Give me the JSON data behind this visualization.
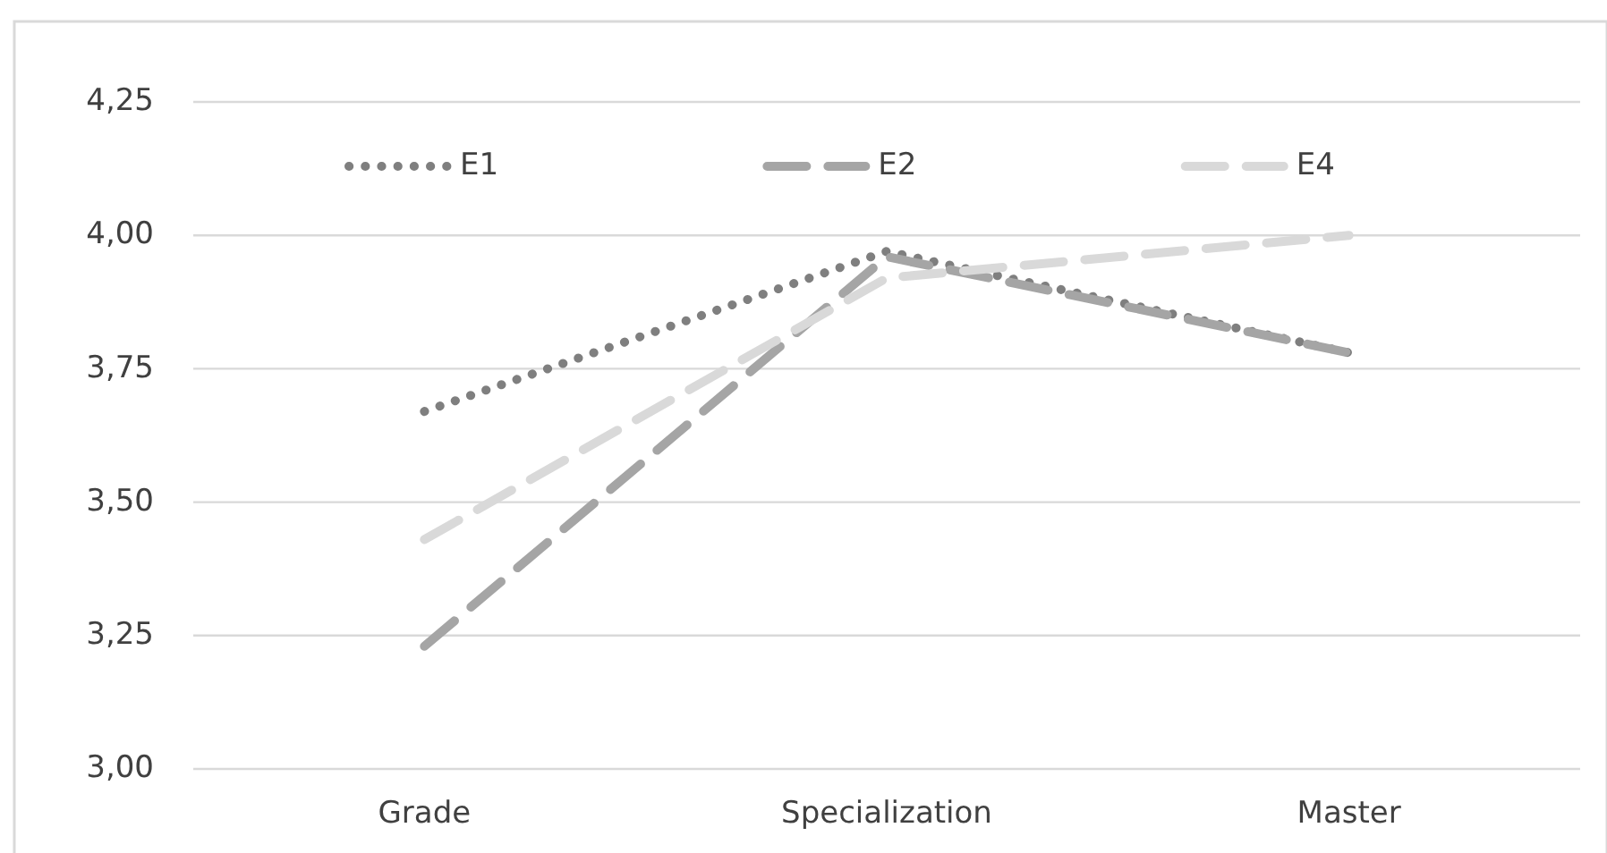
{
  "chart_data": {
    "type": "line",
    "categories": [
      "Grade",
      "Specialization",
      "Master"
    ],
    "series": [
      {
        "name": "E1",
        "color": "#7f7f7f",
        "line_style": "dotted",
        "values": [
          3.67,
          3.97,
          3.78
        ]
      },
      {
        "name": "E2",
        "color": "#a5a5a5",
        "line_style": "dashed",
        "values": [
          3.23,
          3.96,
          3.78
        ]
      },
      {
        "name": "E4",
        "color": "#d9d9d9",
        "line_style": "dashed",
        "values": [
          3.43,
          3.92,
          4.0
        ]
      }
    ],
    "ylim": [
      3.0,
      4.25
    ],
    "yticks": [
      {
        "value": 3.0,
        "label": "3,00"
      },
      {
        "value": 3.25,
        "label": "3,25"
      },
      {
        "value": 3.5,
        "label": "3,50"
      },
      {
        "value": 3.75,
        "label": "3,75"
      },
      {
        "value": 4.0,
        "label": "4,00"
      },
      {
        "value": 4.25,
        "label": "4,25"
      }
    ],
    "grid": "y",
    "legend": "top"
  }
}
